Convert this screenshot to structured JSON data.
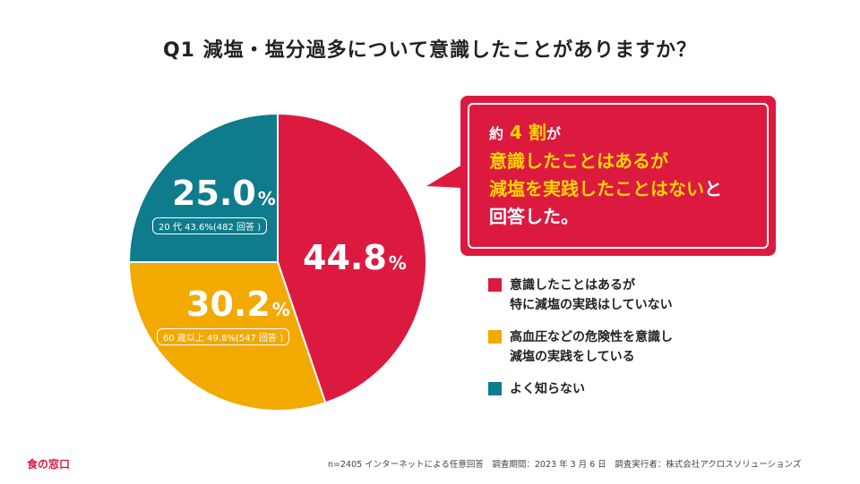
{
  "title": "Q1 減塩・塩分過多について意識したことがありますか？",
  "chart_data": {
    "type": "pie",
    "slices": [
      {
        "label": "意識したことはあるが\n特に減塩の実践はしていない",
        "value": 44.8,
        "color": "#dc1a40"
      },
      {
        "label": "高血圧などの危険性を意識し\n減塩の実践をしている",
        "value": 30.2,
        "color": "#f2a900"
      },
      {
        "label": "よく知らない",
        "value": 25.0,
        "color": "#0e7c8c"
      }
    ],
    "slice_labels": [
      {
        "num": "44.8",
        "unit": "%",
        "sub": ""
      },
      {
        "num": "30.2",
        "unit": "%",
        "sub": "60 歳以上 49.8%(547 回答 )"
      },
      {
        "num": "25.0",
        "unit": "%",
        "sub": "20 代 43.6%(482 回答 )"
      }
    ]
  },
  "callout": {
    "line1_prefix": "約",
    "line1_highlight": "4 割",
    "line1_suffix": "が",
    "line2": "意識したことはあるが",
    "line3_highlight": "減塩を実践したことはない",
    "line3_suffix": "と",
    "line4": "回答した。"
  },
  "legend": [
    {
      "line1": "意識したことはあるが",
      "line2": "特に減塩の実践はしていない",
      "color": "#dc1a40"
    },
    {
      "line1": "高血圧などの危険性を意識し",
      "line2": "減塩の実践をしている",
      "color": "#f2a900"
    },
    {
      "line1": "よく知らない",
      "line2": "",
      "color": "#0e7c8c"
    }
  ],
  "logo": "食の窓口",
  "footnote": "n=2405 インターネットによる任意回答　調査期間：2023 年 3 月 6 日　調査実行者：株式会社アクロスソリューションズ"
}
